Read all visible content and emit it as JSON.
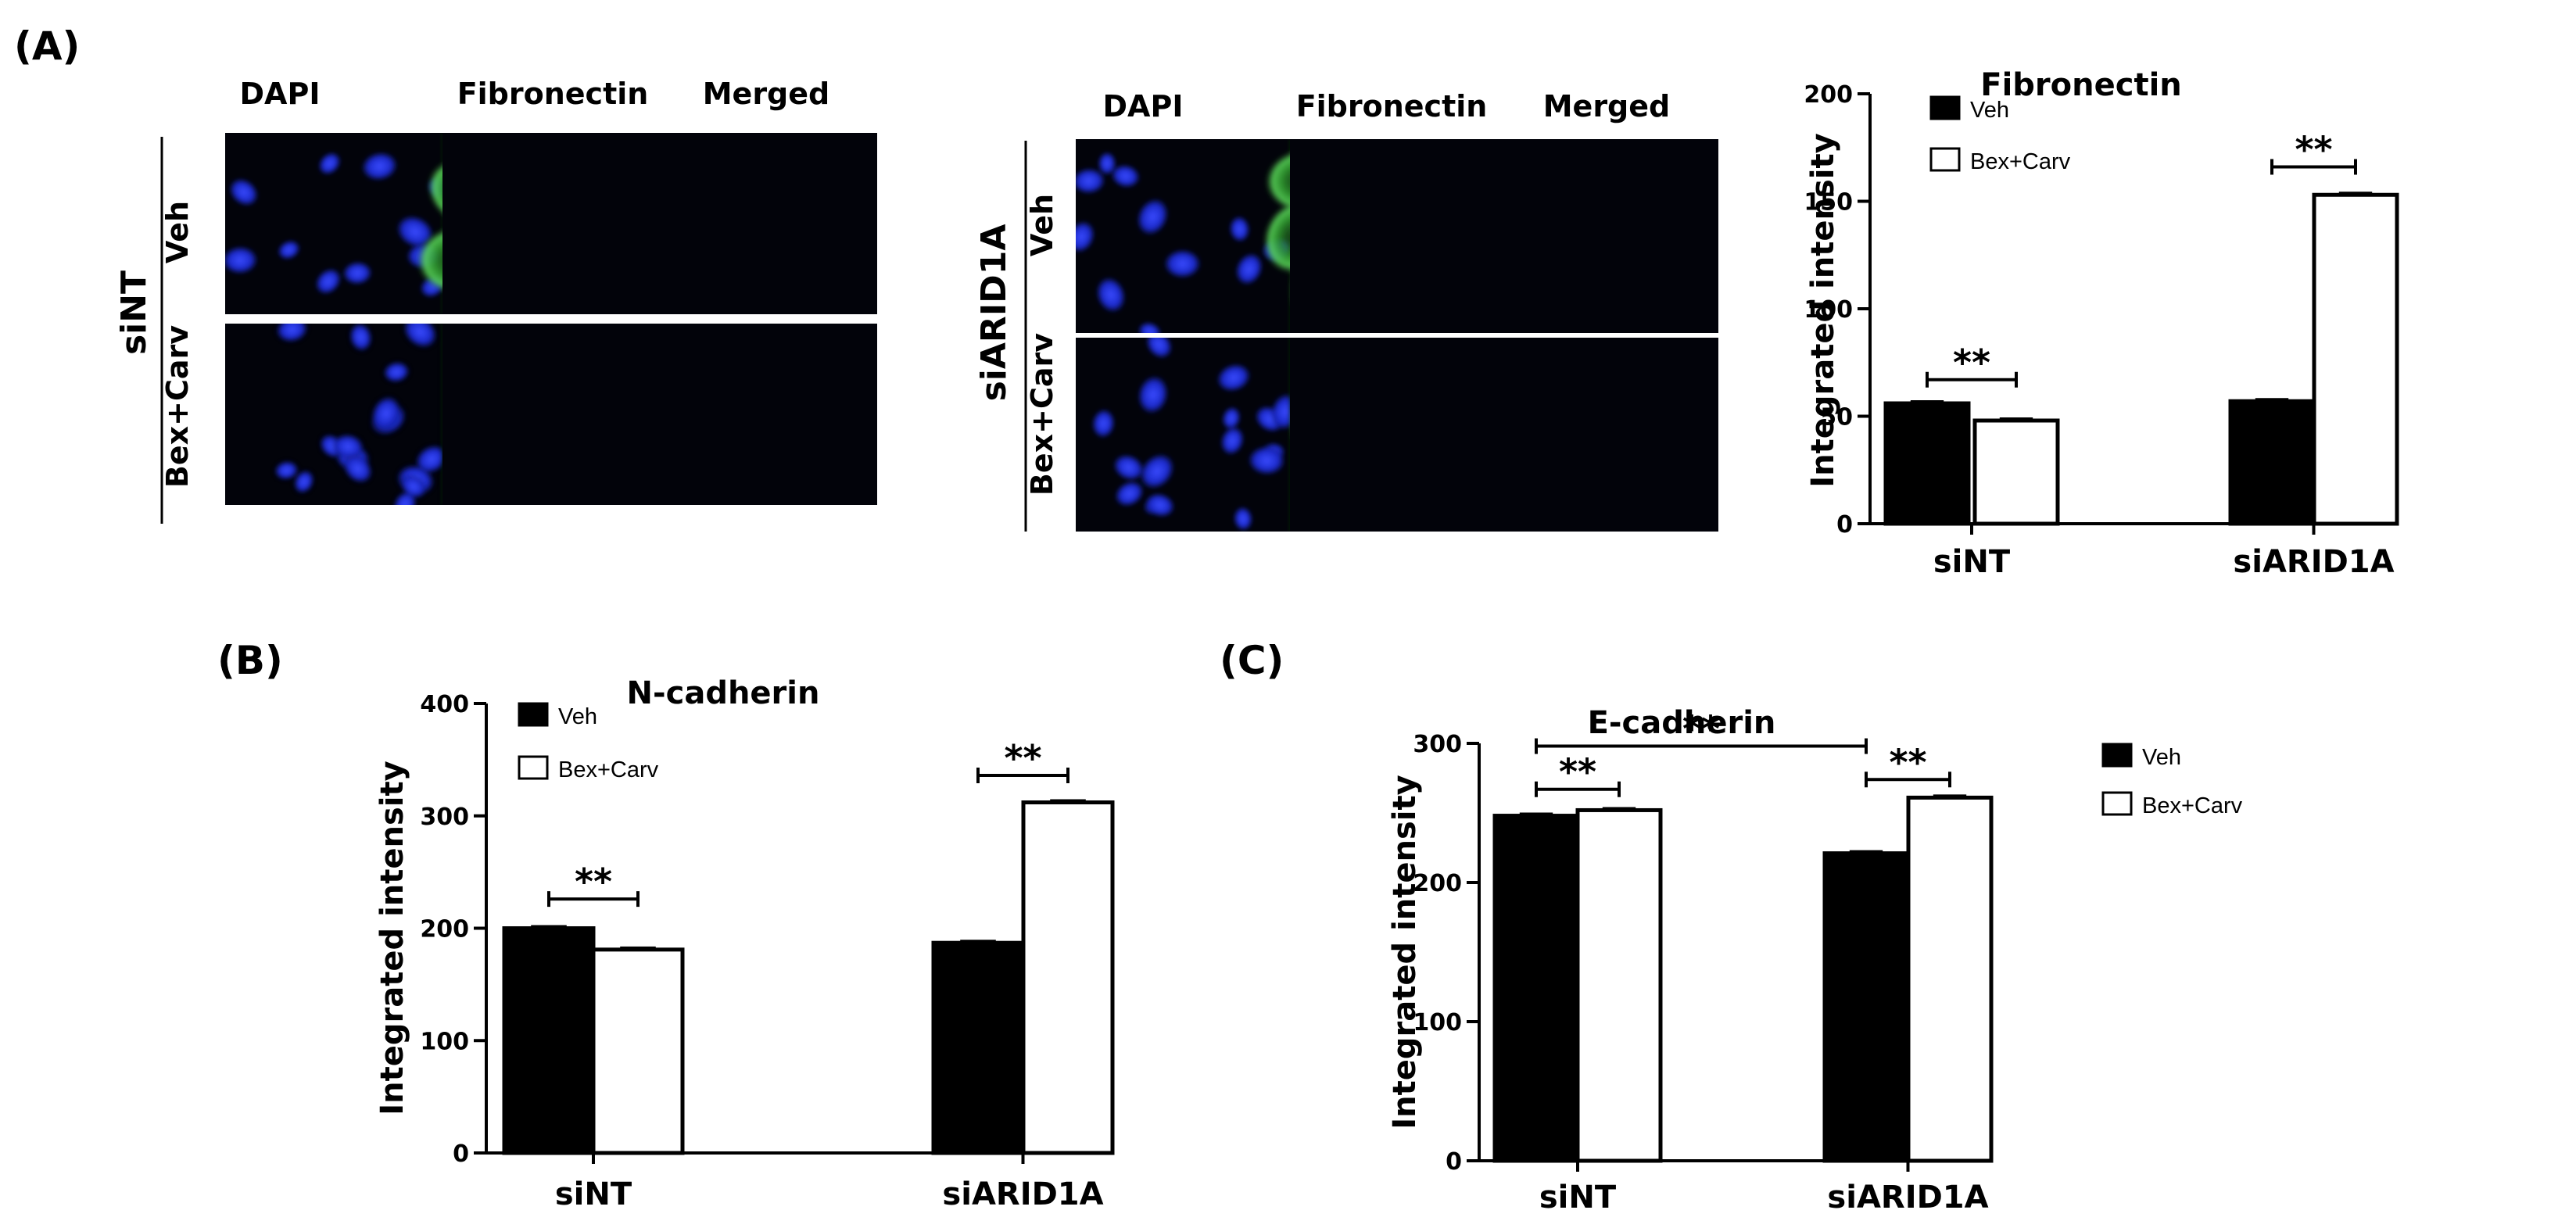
{
  "panels": {
    "a": "(A)",
    "b": "(B)",
    "c": "(C)"
  },
  "micrographs": {
    "stains": [
      "DAPI",
      "Fibronectin",
      "Merged"
    ],
    "treatments": [
      "Veh",
      "Bex+Carv"
    ],
    "left_group": "siNT",
    "right_group": "siARID1A"
  },
  "colors": {
    "dapi": "#1a25c8",
    "fibronectin": "#3db83a",
    "bar_veh": "#000000",
    "bar_bex": "#ffffff"
  },
  "chart_data": [
    {
      "id": "fibronectin",
      "type": "bar",
      "title": "Fibronectin",
      "ylabel": "Integrated intensity",
      "xlabel": "",
      "categories": [
        "siNT",
        "siARID1A"
      ],
      "ylim": [
        0,
        200
      ],
      "yticks": [
        0,
        50,
        100,
        150,
        200
      ],
      "series": [
        {
          "name": "Veh",
          "values": [
            56,
            57
          ]
        },
        {
          "name": "Bex+Carv",
          "values": [
            48,
            153
          ]
        }
      ],
      "legend": "top-left",
      "annotations": [
        {
          "text": "**",
          "from": [
            0,
            0
          ],
          "to": [
            0,
            1
          ],
          "y": 67
        },
        {
          "text": "**",
          "from": [
            1,
            0
          ],
          "to": [
            1,
            1
          ],
          "y": 166
        }
      ]
    },
    {
      "id": "ncadherin",
      "type": "bar",
      "title": "N-cadherin",
      "ylabel": "Integrated intensity",
      "xlabel": "",
      "categories": [
        "siNT",
        "siARID1A"
      ],
      "ylim": [
        0,
        400
      ],
      "yticks": [
        0,
        100,
        200,
        300,
        400
      ],
      "series": [
        {
          "name": "Veh",
          "values": [
            200,
            187
          ]
        },
        {
          "name": "Bex+Carv",
          "values": [
            181,
            312
          ]
        }
      ],
      "legend": "top-left",
      "annotations": [
        {
          "text": "**",
          "from": [
            0,
            0
          ],
          "to": [
            0,
            1
          ],
          "y": 226
        },
        {
          "text": "**",
          "from": [
            1,
            0
          ],
          "to": [
            1,
            1
          ],
          "y": 336
        }
      ]
    },
    {
      "id": "ecadherin",
      "type": "bar",
      "title": "E-cadherin",
      "ylabel": "Integrated intensity",
      "xlabel": "",
      "categories": [
        "siNT",
        "siARID1A"
      ],
      "ylim": [
        0,
        300
      ],
      "yticks": [
        0,
        100,
        200,
        300
      ],
      "series": [
        {
          "name": "Veh",
          "values": [
            248,
            221
          ]
        },
        {
          "name": "Bex+Carv",
          "values": [
            252,
            261
          ]
        }
      ],
      "legend": "right",
      "annotations": [
        {
          "text": "**",
          "from": [
            0,
            0
          ],
          "to": [
            0,
            1
          ],
          "y": 267
        },
        {
          "text": "**",
          "from": [
            0,
            0
          ],
          "to": [
            1,
            0
          ],
          "y": 298
        },
        {
          "text": "**",
          "from": [
            1,
            0
          ],
          "to": [
            1,
            1
          ],
          "y": 274
        }
      ]
    }
  ]
}
